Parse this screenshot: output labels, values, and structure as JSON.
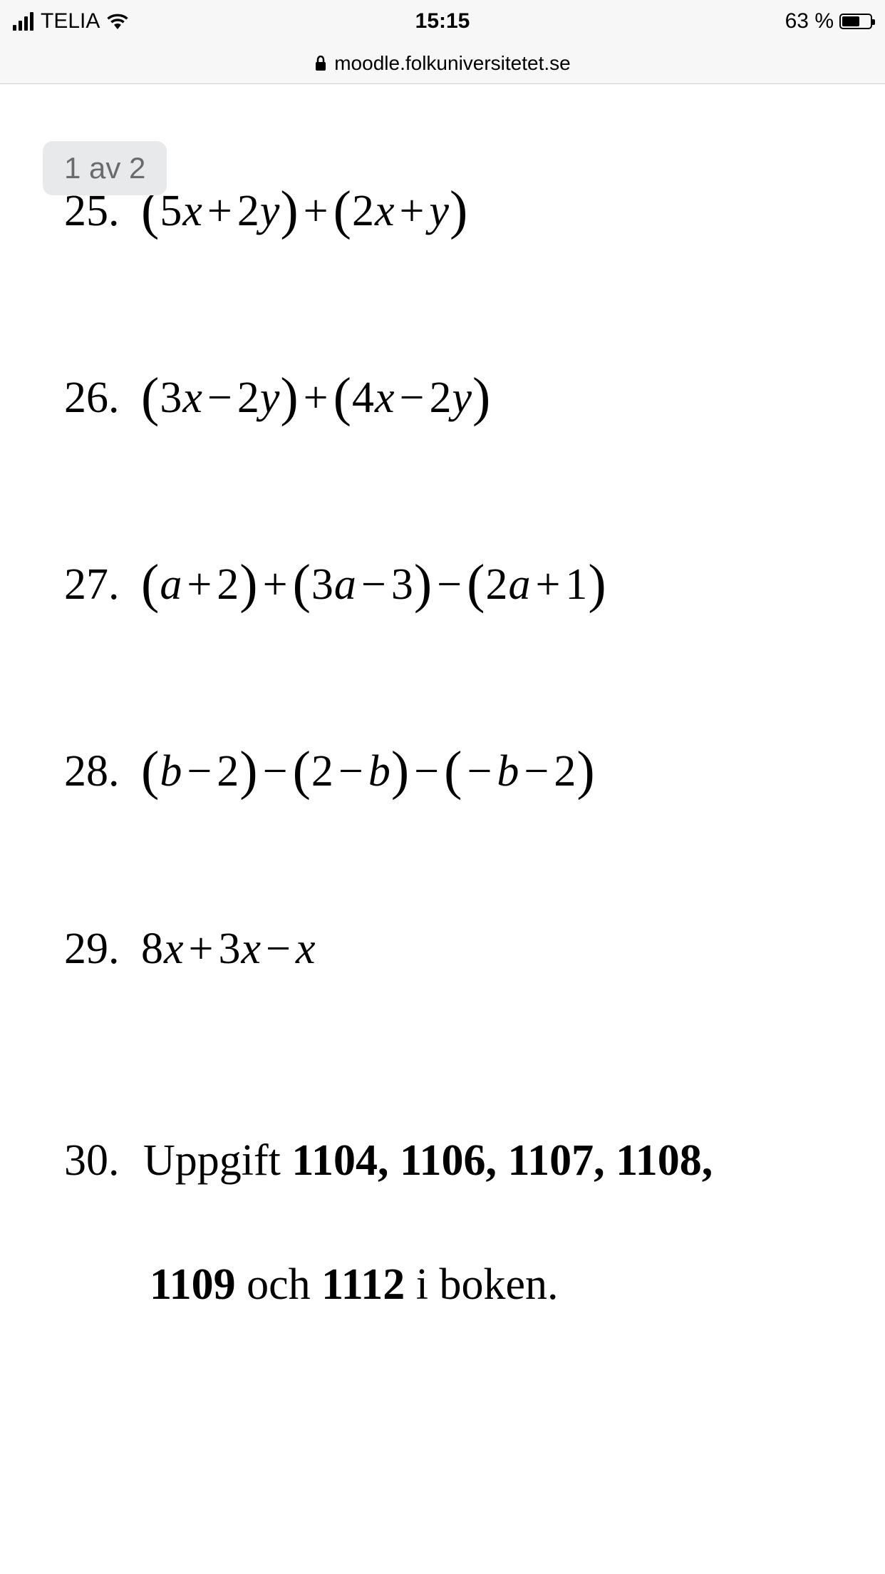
{
  "status_bar": {
    "carrier": "TELIA",
    "time": "15:15",
    "battery_percent": "63 %",
    "battery_fill_percent": 63
  },
  "url_bar": {
    "domain": "moodle.folkuniversitetet.se"
  },
  "page_indicator": "1 av 2",
  "problems": {
    "p25": {
      "num": "25.",
      "expr_parts": [
        "(",
        "5",
        "x",
        "+",
        "2",
        "y",
        ")",
        "+",
        "(",
        "2",
        "x",
        "+",
        "y",
        ")"
      ]
    },
    "p26": {
      "num": "26.",
      "expr_parts": [
        "(",
        "3",
        "x",
        "−",
        "2",
        "y",
        ")",
        "+",
        "(",
        "4",
        "x",
        "−",
        "2",
        "y",
        ")"
      ]
    },
    "p27": {
      "num": "27.",
      "expr_parts": [
        "(",
        "a",
        "+",
        "2",
        ")",
        "+",
        "(",
        "3",
        "a",
        "−",
        "3",
        ")",
        "−",
        "(",
        "2",
        "a",
        "+",
        "1",
        ")"
      ]
    },
    "p28": {
      "num": "28.",
      "expr_parts": [
        "(",
        "b",
        "−",
        "2",
        ")",
        "−",
        "(",
        "2",
        "−",
        "b",
        ")",
        "−",
        "(",
        "−",
        "b",
        "−",
        "2",
        ")"
      ]
    },
    "p29": {
      "num": "29.",
      "expr_parts": [
        "8",
        "x",
        "+",
        "3",
        "x",
        "−",
        "x"
      ]
    },
    "p30": {
      "num": "30.",
      "text_prefix": "Uppgift ",
      "bold1": "1104, 1106, 1107, 1108,",
      "bold2": "1109",
      "mid": " och ",
      "bold3": "1112",
      "suffix": " i boken."
    }
  },
  "colors": {
    "status_bg": "#f7f7f8",
    "text": "#000000",
    "indicator_bg": "#e8e9ea",
    "indicator_text": "#6b6b6b",
    "content_bg": "#ffffff"
  }
}
